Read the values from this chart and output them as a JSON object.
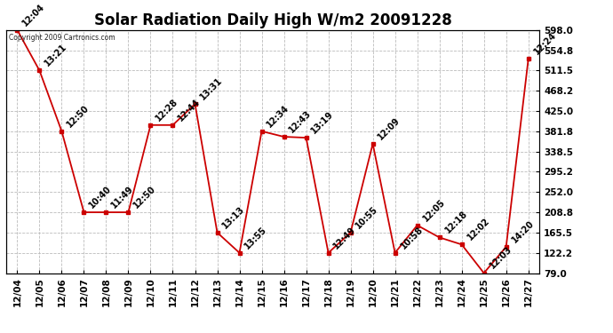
{
  "title": "Solar Radiation Daily High W/m2 20091228",
  "copyright": "Copyright 2009 Cartronics.com",
  "dates": [
    "12/04",
    "12/05",
    "12/06",
    "12/07",
    "12/08",
    "12/09",
    "12/10",
    "12/11",
    "12/12",
    "12/13",
    "12/14",
    "12/15",
    "12/16",
    "12/17",
    "12/18",
    "12/19",
    "12/20",
    "12/21",
    "12/22",
    "12/23",
    "12/24",
    "12/25",
    "12/26",
    "12/27"
  ],
  "values": [
    598.0,
    511.5,
    381.8,
    208.8,
    208.8,
    208.8,
    395.0,
    395.0,
    440.0,
    165.5,
    122.2,
    381.8,
    370.0,
    368.0,
    122.2,
    165.5,
    355.0,
    122.2,
    181.0,
    155.0,
    140.0,
    79.0,
    135.0,
    536.0
  ],
  "labels": [
    "12:04",
    "13:21",
    "12:50",
    "10:40",
    "11:49",
    "12:50",
    "12:28",
    "12:44",
    "13:31",
    "13:13",
    "13:55",
    "12:34",
    "12:43",
    "13:19",
    "12:49",
    "10:55",
    "12:09",
    "10:58",
    "12:05",
    "12:18",
    "12:02",
    "12:03",
    "14:20",
    "12:24"
  ],
  "line_color": "#cc0000",
  "marker_color": "#cc0000",
  "background_color": "#ffffff",
  "grid_color": "#bbbbbb",
  "label_color": "#000000",
  "yticks": [
    79.0,
    122.2,
    165.5,
    208.8,
    252.0,
    295.2,
    338.5,
    381.8,
    425.0,
    468.2,
    511.5,
    554.8,
    598.0
  ],
  "ylim": [
    79.0,
    598.0
  ],
  "title_fontsize": 12,
  "label_fontsize": 7,
  "tick_fontsize": 7.5,
  "marker_size": 3.5
}
